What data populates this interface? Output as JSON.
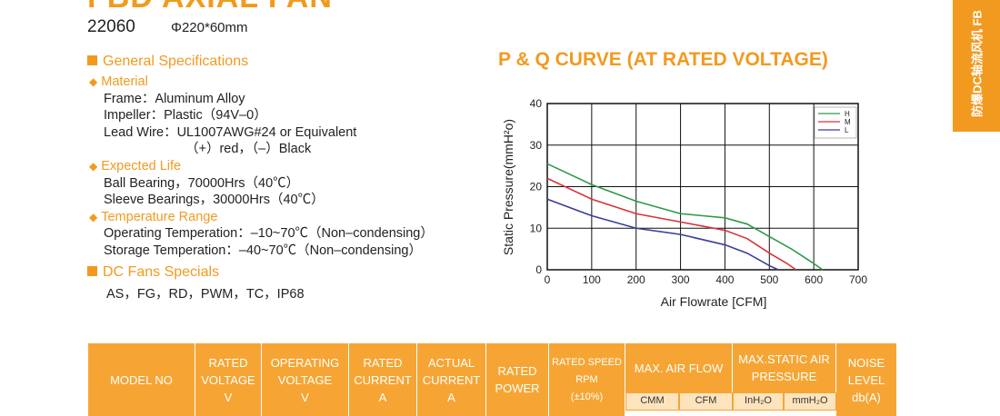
{
  "header": {
    "title": "FBD AXIAL FAN",
    "model": "22060",
    "size": "Φ220*60mm"
  },
  "side_tab": "防爆DC轴流风机 FB",
  "specs": {
    "general": {
      "heading": "General Specifications",
      "groups": [
        {
          "title": "Material",
          "lines": [
            "Frame：Aluminum Alloy",
            "Impeller：Plastic（94V–0）",
            "Lead Wire：UL1007AWG#24 or Equivalent",
            "（+）red，（–）Black"
          ]
        },
        {
          "title": "Expected Life",
          "lines": [
            "Ball Bearing，70000Hrs（40℃）",
            "Sleeve Bearings，30000Hrs（40℃）"
          ]
        },
        {
          "title": "Temperature Range",
          "lines": [
            "Operating Temperation：–10~70℃（Non–condensing）",
            "Storage Temperation：–40~70℃（Non–condensing）"
          ]
        }
      ]
    },
    "specials": {
      "heading": "DC Fans Specials",
      "text": "AS，FG，RD，PWM，TC，IP68"
    }
  },
  "chart_data": {
    "type": "line",
    "title": "P & Q CURVE (AT RATED VOLTAGE)",
    "x_label": "Air Flowrate [CFM]",
    "y_label": "Static Pressure(mmH²o)",
    "xlim": [
      0,
      700
    ],
    "ylim": [
      0,
      40
    ],
    "xticks": [
      0,
      100,
      200,
      300,
      400,
      500,
      600,
      700
    ],
    "yticks": [
      0,
      10,
      20,
      30,
      40
    ],
    "grid": true,
    "legend": "upper right",
    "series": [
      {
        "name": "H",
        "color": "#2e9a4a",
        "x": [
          0,
          100,
          200,
          300,
          400,
          450,
          500,
          550,
          600,
          620
        ],
        "values": [
          25.5,
          20.5,
          16.5,
          13.5,
          12.5,
          11,
          8,
          5,
          1.5,
          0
        ]
      },
      {
        "name": "M",
        "color": "#d8333a",
        "x": [
          0,
          100,
          200,
          300,
          400,
          450,
          500,
          540,
          560
        ],
        "values": [
          22,
          17,
          13.5,
          11.5,
          9.5,
          7.5,
          4,
          1.5,
          0
        ]
      },
      {
        "name": "L",
        "color": "#3a3f9a",
        "x": [
          0,
          100,
          200,
          300,
          400,
          450,
          500,
          520
        ],
        "values": [
          17,
          13,
          10,
          8.5,
          6,
          4,
          1,
          0
        ]
      }
    ]
  },
  "table": {
    "headers": [
      [
        "MODEL NO"
      ],
      [
        "RATED",
        "VOLTAGE",
        "V"
      ],
      [
        "OPERATING",
        "VOLTAGE",
        "V"
      ],
      [
        "RATED",
        "CURRENT",
        "A"
      ],
      [
        "ACTUAL",
        "CURRENT",
        "A"
      ],
      [
        "RATED",
        "POWER"
      ],
      [
        "RATED SPEED",
        "RPM",
        "(±10%)"
      ],
      [
        "MAX. AIR FLOW"
      ],
      [
        "MAX.STATIC AIR",
        "PRESSURE"
      ],
      [
        "NOISE",
        "LEVEL",
        "db(A)"
      ]
    ],
    "subheaders": [
      "CMM",
      "CFM",
      "InH₂O",
      "mmH₂O"
    ]
  }
}
